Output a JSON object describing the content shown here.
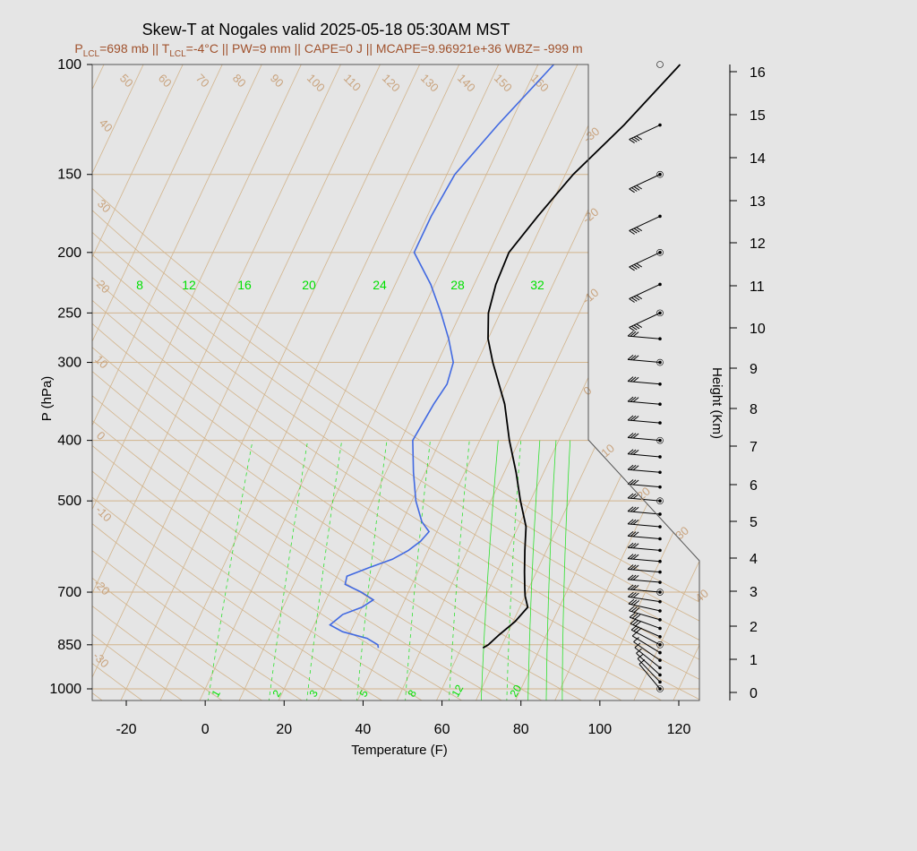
{
  "title": "Skew-T at Nogales valid 2025-05-18 05:30AM MST",
  "subtitle": {
    "p_lcl": "P",
    "p_lcl_sub": "LCL",
    "p_lcl_rest": "=698 mb || T",
    "t_lcl_sub": "LCL",
    "t_lcl_rest": "=-4°C || PW=9 mm || CAPE=0 J || MCAPE=9.96921e+36 WBZ= -999 m"
  },
  "colors": {
    "background": "#e5e5e5",
    "plot_bg": "#e5e5e5",
    "isotherm": "#d2b48c",
    "isobar": "#d2b48c",
    "adiabat": "#d2b48c",
    "mixing_ratio": "#00e000",
    "temperature": "#000000",
    "dewpoint": "#4169e1",
    "subtitle": "#a0522d"
  },
  "chart_data": {
    "type": "line",
    "title": "Skew-T at Nogales valid 2025-05-18 05:30AM MST",
    "xlabel": "Temperature (F)",
    "ylabel": "P (hPa)",
    "y2label": "Height (Km)",
    "xlim": [
      -28,
      125
    ],
    "ylim": [
      1050,
      100
    ],
    "y_scale": "log",
    "x_ticks": [
      -20,
      0,
      20,
      40,
      60,
      80,
      100,
      120
    ],
    "y_ticks": [
      100,
      150,
      200,
      250,
      300,
      400,
      500,
      700,
      850,
      1000
    ],
    "height_ticks_km": [
      0,
      1,
      2,
      3,
      4,
      5,
      6,
      7,
      8,
      9,
      10,
      11,
      12,
      13,
      14,
      15,
      16
    ],
    "isotherm_labels_c": [
      "-40",
      "-30",
      "-20",
      "-10",
      "0",
      "10",
      "20",
      "30",
      "40"
    ],
    "adiabat_labels": [
      "50",
      "60",
      "70",
      "80",
      "90",
      "100",
      "110",
      "120",
      "130",
      "140",
      "150",
      "160"
    ],
    "adiabat_left_labels": [
      "40",
      "30",
      "20",
      "10",
      "0",
      "-10",
      "-20",
      "-30"
    ],
    "mixing_ratio_top_labels": [
      "8",
      "12",
      "16",
      "20",
      "24",
      "28",
      "32"
    ],
    "mixing_ratio_bottom_labels": [
      "1",
      "2",
      "3",
      "5",
      "8",
      "12",
      "20"
    ],
    "series": [
      {
        "name": "Temperature",
        "color": "#000000",
        "points": [
          [
            860,
            65.5
          ],
          [
            850,
            66.5
          ],
          [
            820,
            68
          ],
          [
            780,
            70.5
          ],
          [
            740,
            72
          ],
          [
            710,
            70
          ],
          [
            690,
            69
          ],
          [
            650,
            67
          ],
          [
            600,
            64.5
          ],
          [
            550,
            62
          ],
          [
            500,
            57.5
          ],
          [
            450,
            53
          ],
          [
            400,
            47.5
          ],
          [
            350,
            42
          ],
          [
            300,
            34
          ],
          [
            275,
            30
          ],
          [
            250,
            27
          ],
          [
            225,
            25.5
          ],
          [
            200,
            25
          ],
          [
            175,
            28
          ],
          [
            150,
            32
          ],
          [
            125,
            39
          ],
          [
            100,
            46
          ]
        ]
      },
      {
        "name": "Dewpoint",
        "color": "#4169e1",
        "points": [
          [
            860,
            39
          ],
          [
            850,
            38.5
          ],
          [
            830,
            35
          ],
          [
            810,
            28
          ],
          [
            790,
            24
          ],
          [
            760,
            26
          ],
          [
            740,
            30
          ],
          [
            720,
            32
          ],
          [
            700,
            28
          ],
          [
            680,
            23
          ],
          [
            660,
            22.5
          ],
          [
            640,
            27
          ],
          [
            620,
            32
          ],
          [
            600,
            35
          ],
          [
            580,
            37
          ],
          [
            560,
            38
          ],
          [
            540,
            35
          ],
          [
            500,
            31
          ],
          [
            450,
            27
          ],
          [
            400,
            23
          ],
          [
            350,
            24
          ],
          [
            325,
            25
          ],
          [
            300,
            24
          ],
          [
            275,
            20
          ],
          [
            250,
            15
          ],
          [
            225,
            9
          ],
          [
            200,
            1
          ],
          [
            175,
            1
          ],
          [
            150,
            2
          ],
          [
            125,
            7
          ],
          [
            100,
            14
          ]
        ]
      }
    ],
    "wind_barbs_pressures": [
      1000,
      975,
      950,
      925,
      900,
      875,
      850,
      825,
      800,
      775,
      750,
      725,
      700,
      675,
      650,
      625,
      600,
      575,
      550,
      525,
      500,
      475,
      450,
      425,
      400,
      375,
      350,
      325,
      300,
      275,
      250,
      225,
      200,
      175,
      150,
      125
    ]
  }
}
